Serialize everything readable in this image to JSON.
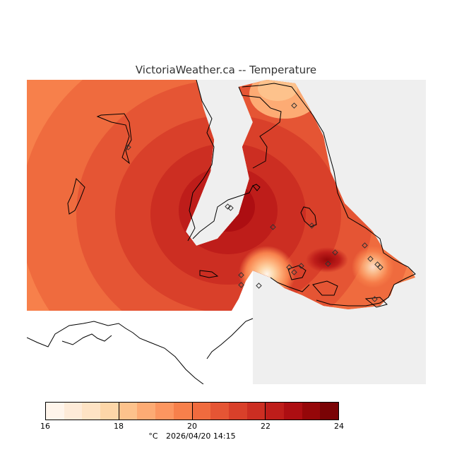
{
  "title": "VictoriaWeather.ca -- Temperature",
  "legend": {
    "min": 16,
    "max": 24,
    "ticks": [
      "16",
      "18",
      "20",
      "22",
      "24"
    ],
    "colors": [
      "#fff5eb",
      "#feebd8",
      "#fee3c4",
      "#fdd6a8",
      "#fdc28c",
      "#fdab74",
      "#fc9660",
      "#f7804b",
      "#ef6b3e",
      "#e55534",
      "#d9402a",
      "#cc2e22",
      "#be1d1a",
      "#ad0e12",
      "#950709",
      "#7a0305"
    ],
    "unit": "°C",
    "timestamp": "2026/04/20 14:15"
  },
  "map": {
    "land_color": "#efefef",
    "sea_color": "#ffffff",
    "station_icon": "diamond-icon",
    "station_count": 17
  }
}
